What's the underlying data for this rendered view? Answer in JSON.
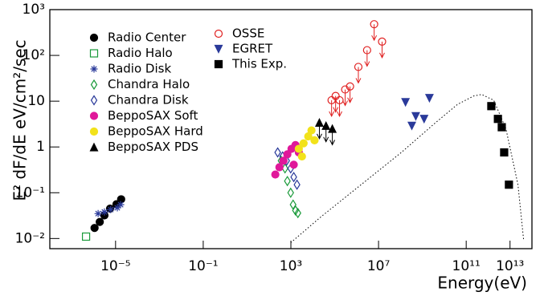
{
  "chart_data": {
    "type": "scatter",
    "x_label": "Energy(eV)",
    "y_label": "E² dF/dE eV/cm²/sec",
    "log_x": true,
    "log_y": true,
    "xlim": [
      1e-08,
      100000000000000.0
    ],
    "ylim": [
      0.006,
      1000
    ],
    "xticks": [
      {
        "value": 1e-05,
        "label": "10⁻⁵"
      },
      {
        "value": 0.1,
        "label": "10⁻¹"
      },
      {
        "value": 1000,
        "label": "10³"
      },
      {
        "value": 10000000.0,
        "label": "10⁷"
      },
      {
        "value": 100000000000.0,
        "label": "10¹¹"
      },
      {
        "value": 10000000000000.0,
        "label": "10¹³"
      }
    ],
    "yticks": [
      {
        "value": 0.01,
        "label": "10⁻²"
      },
      {
        "value": 0.1,
        "label": "10⁻¹"
      },
      1,
      10,
      {
        "value": 100,
        "label": "10²"
      },
      {
        "value": 1000,
        "label": "10³"
      }
    ],
    "series": [
      {
        "name": "Radio Center",
        "color": "#000000",
        "marker": "circle",
        "filled": true,
        "x": [
          1.1e-06,
          1.9e-06,
          3.1e-06,
          5.6e-06,
          1.1e-05,
          1.8e-05
        ],
        "values": [
          0.017,
          0.023,
          0.032,
          0.045,
          0.056,
          0.072
        ]
      },
      {
        "name": "Radio Halo",
        "color": "#1a9a3a",
        "marker": "square",
        "filled": false,
        "x": [
          4.5e-07
        ],
        "values": [
          0.011
        ]
      },
      {
        "name": "Radio Disk",
        "color": "#2a3a9a",
        "marker": "star",
        "filled": false,
        "x": [
          1.6e-06,
          3.1e-06,
          6e-06,
          1.2e-05,
          1.7e-05
        ],
        "values": [
          0.035,
          0.038,
          0.043,
          0.047,
          0.055
        ]
      },
      {
        "name": "Chandra Halo",
        "color": "#1a9a3a",
        "marker": "diamond",
        "filled": false,
        "x": [
          355,
          540,
          690,
          980,
          1260,
          1620,
          2090
        ],
        "values": [
          0.5,
          0.34,
          0.18,
          0.1,
          0.055,
          0.041,
          0.036
        ]
      },
      {
        "name": "Chandra Disk",
        "color": "#2a3a9a",
        "marker": "diamond",
        "filled": false,
        "x": [
          250,
          420,
          640,
          980,
          1350,
          1900
        ],
        "values": [
          0.76,
          0.62,
          0.5,
          0.34,
          0.22,
          0.15
        ]
      },
      {
        "name": "BeppoSAX Soft",
        "color": "#e0189a",
        "marker": "circle",
        "filled": true,
        "x": [
          195,
          300,
          460,
          690,
          1070,
          1620,
          2300,
          1350
        ],
        "values": [
          0.25,
          0.36,
          0.5,
          0.69,
          0.91,
          1.1,
          0.76,
          0.41
        ]
      },
      {
        "name": "BeppoSAX Hard",
        "color": "#f2e21a",
        "marker": "circle",
        "filled": true,
        "x": [
          2300,
          3800,
          6200,
          8700,
          12000,
          3200
        ],
        "values": [
          0.91,
          1.2,
          1.7,
          2.3,
          1.4,
          0.62
        ]
      },
      {
        "name": "BeppoSAX PDS",
        "color": "#000000",
        "marker": "triangle",
        "filled": true,
        "upper_limit": true,
        "x": [
          20000,
          40000,
          78000
        ],
        "values": [
          3.4,
          2.9,
          2.5
        ]
      },
      {
        "name": "OSSE",
        "color": "#e02020",
        "marker": "circle",
        "filled": false,
        "upper_limit": true,
        "x": [
          72000,
          110000,
          166000,
          300000,
          500000,
          1200000,
          3000000,
          6300000,
          14500000
        ],
        "values": [
          10.5,
          13,
          10.5,
          18,
          21,
          56,
          130,
          480,
          200
        ]
      },
      {
        "name": "EGRET",
        "color": "#2a3a9a",
        "marker": "triangle-down",
        "filled": true,
        "x": [
          170000000,
          330000000,
          500000000,
          1200000000,
          2100000000
        ],
        "values": [
          9.5,
          2.9,
          4.7,
          4.1,
          11.7
        ]
      },
      {
        "name": "This Exp.",
        "color": "#000000",
        "marker": "square",
        "filled": true,
        "x": [
          1400000000000.0,
          2800000000000.0,
          4200000000000.0,
          5400000000000.0,
          8900000000000.0
        ],
        "values": [
          7.8,
          4.1,
          2.7,
          0.76,
          0.15
        ]
      },
      {
        "type": "line",
        "color": "#000000",
        "dashed": true,
        "x": [
          980,
          24000,
          1600000,
          110000000,
          3200000000,
          40000000000,
          220000000000,
          510000000000,
          1800000000000.0,
          6500000000000.0,
          23000000000000.0,
          42000000000000.0
        ],
        "values": [
          0.0081,
          0.03,
          0.15,
          0.76,
          3.1,
          8.5,
          13,
          14,
          10.5,
          2.5,
          0.15,
          0.009
        ]
      }
    ]
  }
}
